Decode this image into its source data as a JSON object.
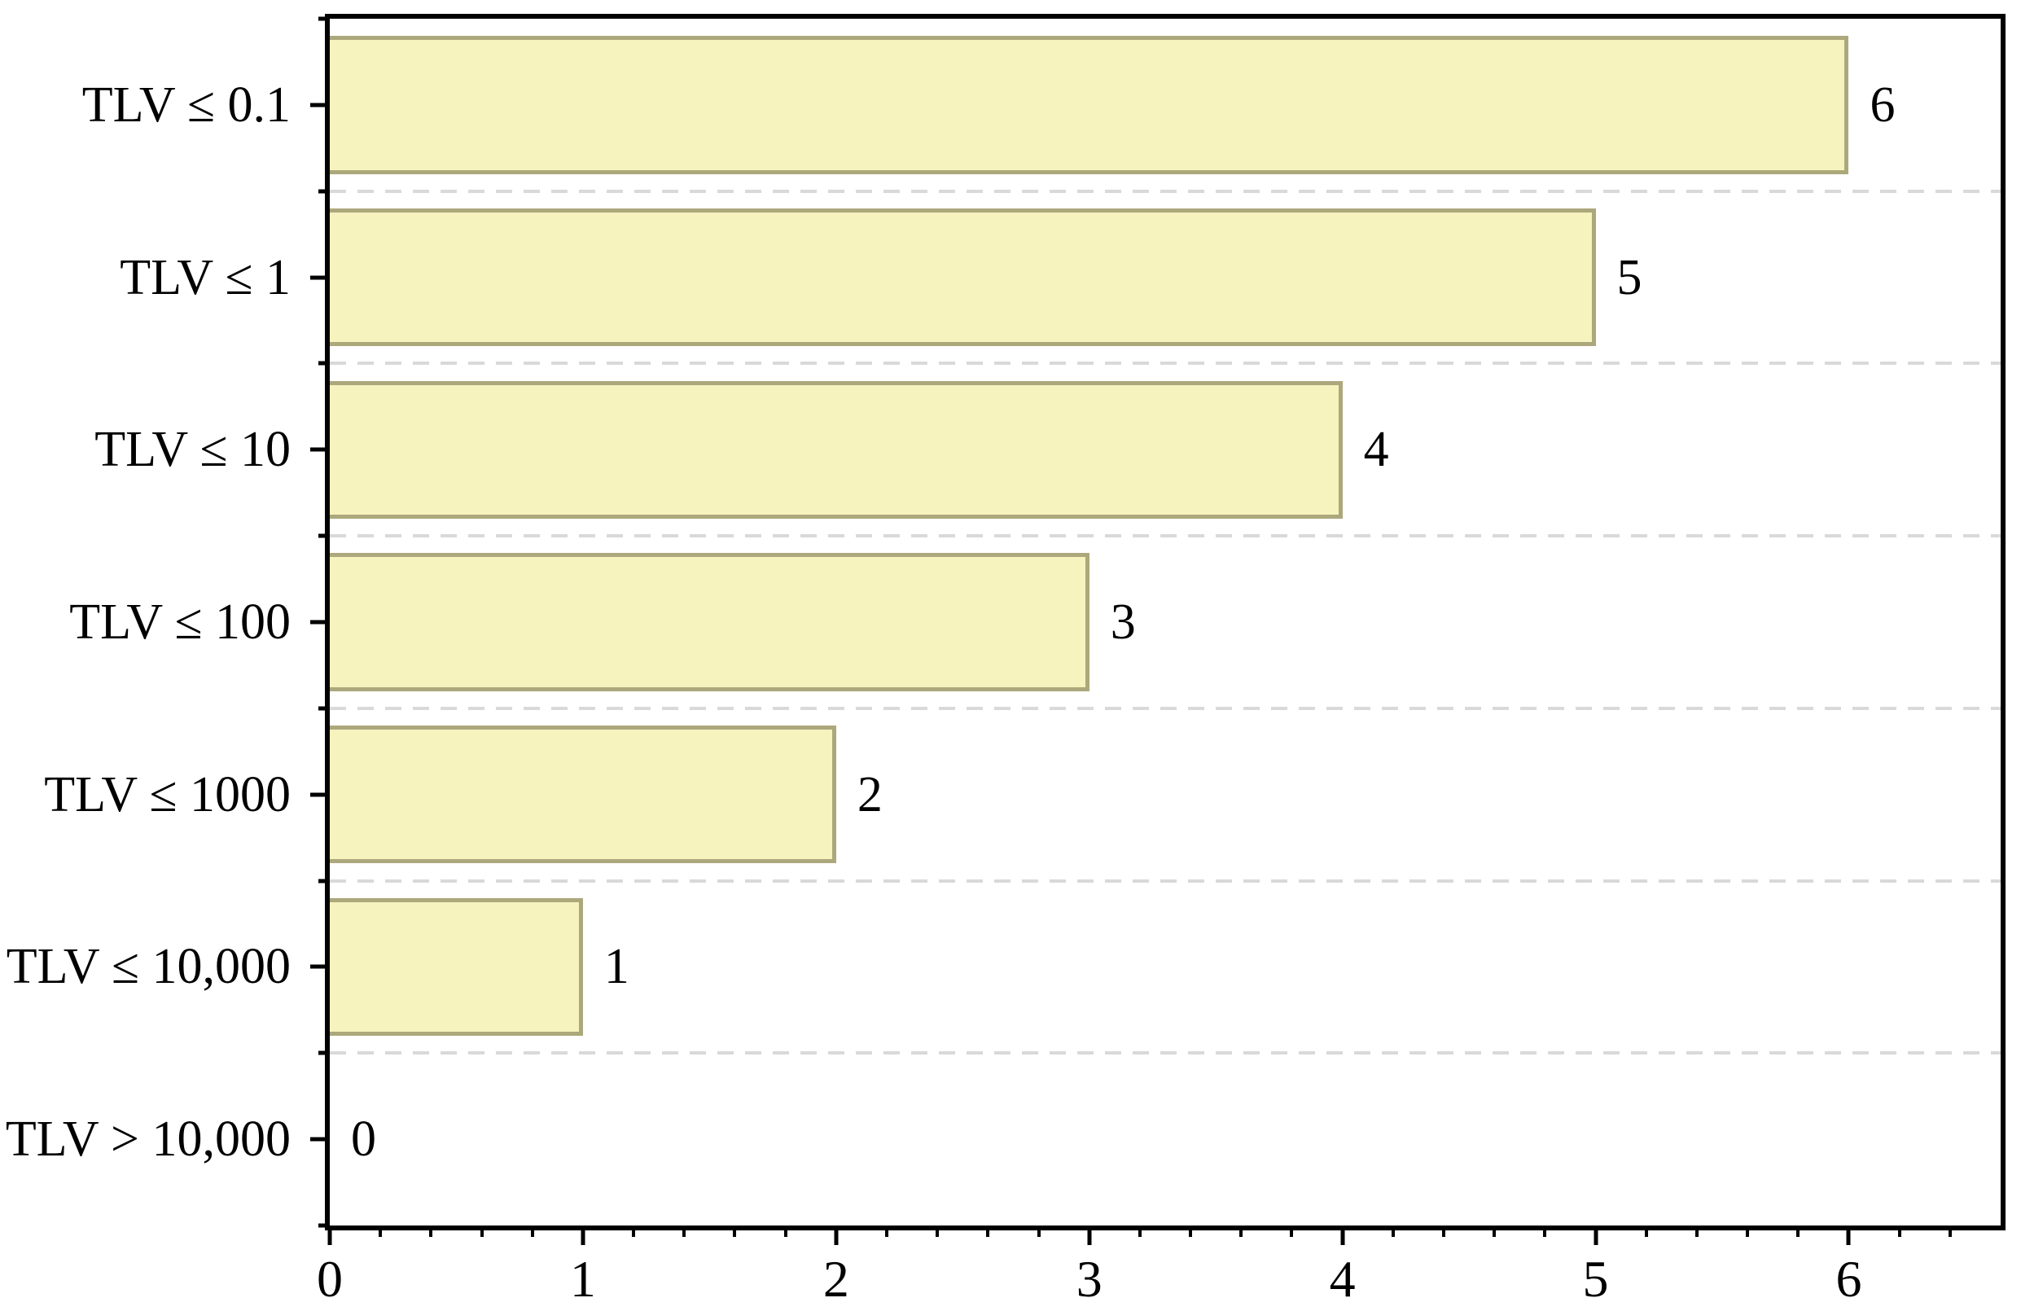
{
  "chart_data": {
    "type": "bar",
    "orientation": "horizontal",
    "title": "",
    "xlabel": "",
    "ylabel": "",
    "categories": [
      "TLV ≤ 0.1",
      "TLV ≤ 1",
      "TLV ≤ 10",
      "TLV ≤ 100",
      "TLV ≤ 1000",
      "TLV ≤ 10,000",
      "TLV > 10,000"
    ],
    "values": [
      6,
      5,
      4,
      3,
      2,
      1,
      0
    ],
    "value_labels": [
      "6",
      "5",
      "4",
      "3",
      "2",
      "1",
      "0"
    ],
    "xlim": [
      0,
      6.6
    ],
    "x_major_ticks": [
      0,
      1,
      2,
      3,
      4,
      5,
      6
    ],
    "x_tick_labels": [
      "0",
      "1",
      "2",
      "3",
      "4",
      "5",
      "6"
    ],
    "x_minor_tick_step": 0.2,
    "grid": "horizontal dashed lines at category boundaries",
    "legend": "none",
    "colors": {
      "bar_fill": "#F7F3BE",
      "bar_border": "#ACA87C",
      "grid_line": "#D9D9D9",
      "axis": "#000000",
      "text": "#000000",
      "background": "#FFFFFF"
    }
  }
}
